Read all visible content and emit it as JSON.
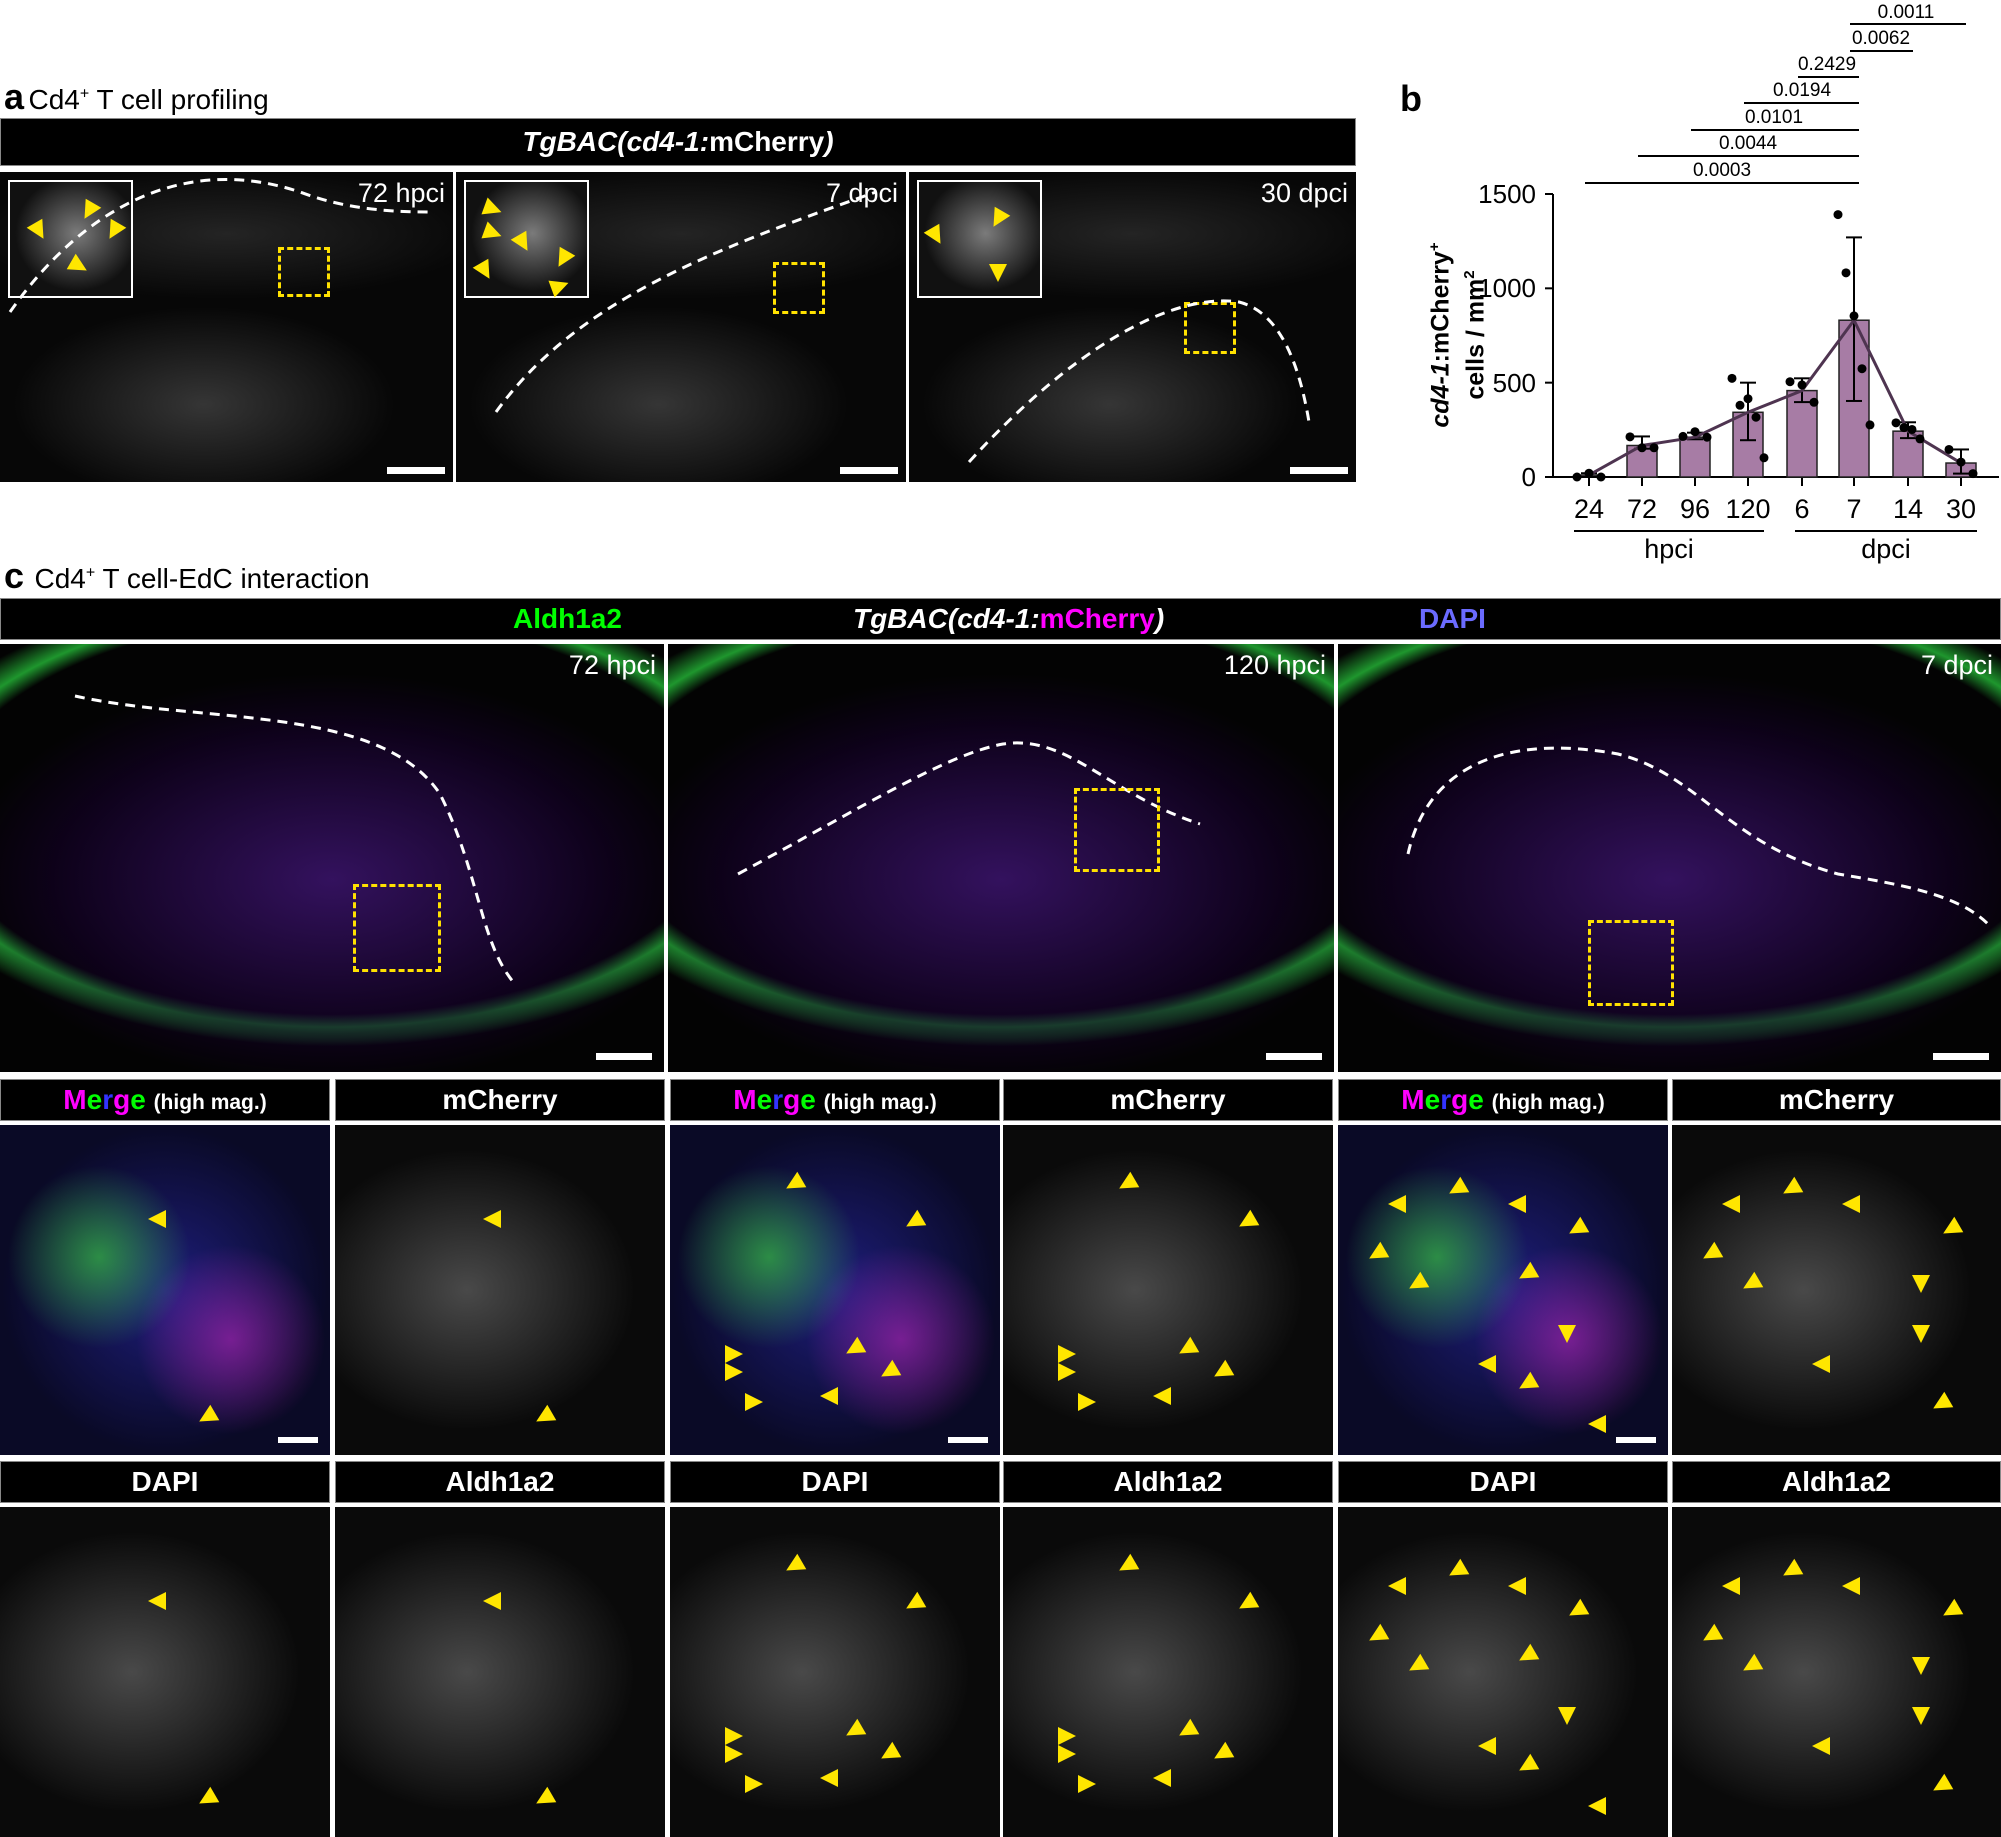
{
  "panel_a": {
    "letter": "a",
    "title": "Cd4",
    "title_sup": "+",
    "title_rest": " T cell profiling",
    "header_italic": "TgBAC(cd4-1:",
    "header_plain": "mCherry",
    "header_close": ")",
    "images": [
      {
        "timepoint": "72 hpci"
      },
      {
        "timepoint": "7 dpci"
      },
      {
        "timepoint": "30 dpci"
      }
    ]
  },
  "panel_b": {
    "letter": "b"
  },
  "panel_c": {
    "letter": "c",
    "title": "Cd4",
    "title_sup": "+",
    "title_rest": " T cell-EdC interaction",
    "header": {
      "aldh": "Aldh1a2",
      "tg_italic": "TgBAC(cd4-1:",
      "tg_mcherry": "mCherry",
      "tg_close": ")",
      "dapi": "DAPI"
    },
    "overview": [
      {
        "timepoint": "72 hpci"
      },
      {
        "timepoint": "120 hpci"
      },
      {
        "timepoint": "7 dpci"
      }
    ],
    "row2_labels": [
      "Merge (high mag.)",
      "mCherry",
      "Merge (high mag.)",
      "mCherry",
      "Merge (high mag.)",
      "mCherry"
    ],
    "merge_letters": [
      "M",
      "e",
      "r",
      "g",
      "e"
    ],
    "merge_suffix": "(high mag.)",
    "mcherry_label": "mCherry",
    "row3_labels": [
      "DAPI",
      "Aldh1a2",
      "DAPI",
      "Aldh1a2",
      "DAPI",
      "Aldh1a2"
    ]
  },
  "colors": {
    "bar_fill": "#a77ca5",
    "line": "#4e3450",
    "arrowhead": "#ffe600",
    "roi": "#ffe100",
    "aldh1a2": "#00ff00",
    "mcherry": "#ff00ff",
    "dapi": "#6b6bff"
  },
  "chart_data": {
    "type": "bar",
    "title": "",
    "ylabel": "cd4-1:mCherry+ cells / mm2",
    "ylabel_italic": "cd4-1",
    "ylabel_line1_rest": ":mCherry",
    "ylabel_line1_sup": "+",
    "ylabel_line2": "cells / mm",
    "ylabel_line2_sup": "2",
    "xlabel": "",
    "ylim": [
      0,
      1500
    ],
    "yticks": [
      0,
      500,
      1000,
      1500
    ],
    "categories": [
      "24",
      "72",
      "96",
      "120",
      "6",
      "7",
      "14",
      "30"
    ],
    "groups": [
      {
        "label": "hpci",
        "categories": [
          "24",
          "72",
          "96",
          "120"
        ]
      },
      {
        "label": "dpci",
        "categories": [
          "6",
          "7",
          "14",
          "30"
        ]
      }
    ],
    "values": [
      10,
      167,
      211,
      343,
      458,
      831,
      243,
      74
    ],
    "error_upper": [
      20,
      215,
      235,
      500,
      523,
      1270,
      290,
      146
    ],
    "error_lower": [
      0,
      150,
      200,
      195,
      397,
      403,
      206,
      18
    ],
    "points": [
      [
        0,
        20,
        0
      ],
      [
        213,
        155,
        155
      ],
      [
        215,
        240,
        211
      ],
      [
        523,
        380,
        415,
        317,
        102
      ],
      [
        505,
        488,
        396
      ],
      [
        1391,
        1082,
        854,
        574,
        276
      ],
      [
        287,
        262,
        252,
        202
      ],
      [
        146,
        79,
        18
      ]
    ],
    "mean_line": true,
    "significance": [
      {
        "from": "24",
        "to": "7",
        "p": "0.0003"
      },
      {
        "from": "72",
        "to": "7",
        "p": "0.0044"
      },
      {
        "from": "96",
        "to": "7",
        "p": "0.0101"
      },
      {
        "from": "120",
        "to": "7",
        "p": "0.0194"
      },
      {
        "from": "6",
        "to": "7",
        "p": "0.2429"
      },
      {
        "from": "7",
        "to": "14",
        "p": "0.0062"
      },
      {
        "from": "7",
        "to": "30",
        "p": "0.0011"
      }
    ]
  }
}
